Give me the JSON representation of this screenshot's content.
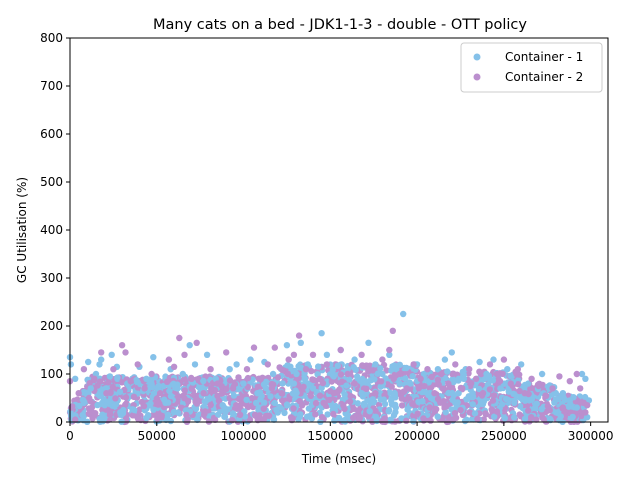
{
  "chart_data": {
    "type": "scatter",
    "title": "Many cats on a bed - JDK1-1-3 - double -  OTT policy",
    "xlabel": "Time (msec)",
    "ylabel": "GC Utilisation (%)",
    "xlim": [
      0,
      310000
    ],
    "ylim": [
      0,
      800
    ],
    "x_ticks": [
      0,
      50000,
      100000,
      150000,
      200000,
      250000,
      300000
    ],
    "y_ticks": [
      0,
      100,
      200,
      300,
      400,
      500,
      600,
      700,
      800
    ],
    "grid": false,
    "legend_position": "top-right",
    "series": [
      {
        "name": "Container - 1",
        "color": "#85c1e9",
        "points": [
          [
            0,
            135
          ],
          [
            500,
            120
          ],
          [
            2000,
            10
          ],
          [
            3000,
            90
          ],
          [
            8000,
            40
          ],
          [
            10500,
            125
          ],
          [
            12000,
            70
          ],
          [
            15000,
            100
          ],
          [
            17000,
            120
          ],
          [
            18000,
            130
          ],
          [
            20000,
            35
          ],
          [
            23000,
            95
          ],
          [
            24000,
            140
          ],
          [
            27000,
            115
          ],
          [
            29000,
            20
          ],
          [
            33000,
            80
          ],
          [
            37000,
            25
          ],
          [
            40000,
            115
          ],
          [
            44000,
            90
          ],
          [
            48000,
            135
          ],
          [
            51000,
            75
          ],
          [
            55000,
            40
          ],
          [
            58000,
            110
          ],
          [
            62000,
            70
          ],
          [
            65000,
            100
          ],
          [
            69000,
            160
          ],
          [
            72000,
            120
          ],
          [
            76000,
            55
          ],
          [
            79000,
            140
          ],
          [
            84000,
            90
          ],
          [
            88000,
            35
          ],
          [
            92000,
            110
          ],
          [
            96000,
            120
          ],
          [
            100000,
            80
          ],
          [
            104000,
            130
          ],
          [
            108000,
            60
          ],
          [
            112000,
            125
          ],
          [
            117000,
            100
          ],
          [
            121000,
            30
          ],
          [
            125000,
            160
          ],
          [
            129000,
            80
          ],
          [
            133000,
            165
          ],
          [
            137000,
            120
          ],
          [
            140000,
            70
          ],
          [
            145000,
            185
          ],
          [
            148000,
            140
          ],
          [
            152000,
            95
          ],
          [
            156000,
            150
          ],
          [
            160000,
            110
          ],
          [
            164000,
            130
          ],
          [
            168000,
            60
          ],
          [
            172000,
            165
          ],
          [
            176000,
            120
          ],
          [
            180000,
            100
          ],
          [
            184000,
            140
          ],
          [
            188000,
            110
          ],
          [
            192000,
            225
          ],
          [
            196000,
            80
          ],
          [
            200000,
            120
          ],
          [
            204000,
            100
          ],
          [
            208000,
            50
          ],
          [
            212000,
            110
          ],
          [
            216000,
            130
          ],
          [
            220000,
            145
          ],
          [
            224000,
            90
          ],
          [
            228000,
            110
          ],
          [
            232000,
            60
          ],
          [
            236000,
            125
          ],
          [
            240000,
            100
          ],
          [
            244000,
            130
          ],
          [
            248000,
            70
          ],
          [
            252000,
            110
          ],
          [
            256000,
            40
          ],
          [
            260000,
            120
          ],
          [
            264000,
            80
          ],
          [
            268000,
            30
          ],
          [
            272000,
            100
          ],
          [
            276000,
            70
          ],
          [
            280000,
            20
          ],
          [
            284000,
            60
          ],
          [
            288000,
            45
          ],
          [
            292000,
            30
          ],
          [
            295000,
            100
          ],
          [
            297000,
            90
          ],
          [
            298000,
            10
          ],
          [
            299000,
            45
          ]
        ]
      },
      {
        "name": "Container - 2",
        "color": "#bb8fce",
        "points": [
          [
            0,
            85
          ],
          [
            1000,
            30
          ],
          [
            3000,
            5
          ],
          [
            5000,
            60
          ],
          [
            8000,
            110
          ],
          [
            11000,
            50
          ],
          [
            14000,
            90
          ],
          [
            18000,
            145
          ],
          [
            21000,
            60
          ],
          [
            25000,
            110
          ],
          [
            30000,
            160
          ],
          [
            32000,
            145
          ],
          [
            35000,
            85
          ],
          [
            39000,
            120
          ],
          [
            43000,
            70
          ],
          [
            47000,
            100
          ],
          [
            52000,
            60
          ],
          [
            57000,
            130
          ],
          [
            60000,
            115
          ],
          [
            63000,
            175
          ],
          [
            66000,
            140
          ],
          [
            70000,
            90
          ],
          [
            73000,
            165
          ],
          [
            77000,
            60
          ],
          [
            81000,
            110
          ],
          [
            85000,
            80
          ],
          [
            90000,
            145
          ],
          [
            94000,
            70
          ],
          [
            98000,
            15
          ],
          [
            102000,
            110
          ],
          [
            106000,
            155
          ],
          [
            110000,
            90
          ],
          [
            114000,
            120
          ],
          [
            118000,
            155
          ],
          [
            122000,
            60
          ],
          [
            126000,
            130
          ],
          [
            129000,
            140
          ],
          [
            132000,
            180
          ],
          [
            136000,
            110
          ],
          [
            140000,
            140
          ],
          [
            144000,
            90
          ],
          [
            148000,
            120
          ],
          [
            152000,
            60
          ],
          [
            156000,
            150
          ],
          [
            160000,
            100
          ],
          [
            164000,
            80
          ],
          [
            168000,
            140
          ],
          [
            172000,
            110
          ],
          [
            176000,
            60
          ],
          [
            180000,
            130
          ],
          [
            184000,
            150
          ],
          [
            186000,
            190
          ],
          [
            190000,
            100
          ],
          [
            194000,
            70
          ],
          [
            198000,
            120
          ],
          [
            202000,
            90
          ],
          [
            206000,
            110
          ],
          [
            210000,
            60
          ],
          [
            214000,
            100
          ],
          [
            218000,
            80
          ],
          [
            222000,
            120
          ],
          [
            226000,
            70
          ],
          [
            230000,
            110
          ],
          [
            234000,
            90
          ],
          [
            238000,
            60
          ],
          [
            242000,
            120
          ],
          [
            246000,
            100
          ],
          [
            250000,
            130
          ],
          [
            254000,
            80
          ],
          [
            258000,
            110
          ],
          [
            262000,
            60
          ],
          [
            266000,
            90
          ],
          [
            270000,
            75
          ],
          [
            274000,
            55
          ],
          [
            278000,
            70
          ],
          [
            282000,
            95
          ],
          [
            284000,
            30
          ],
          [
            288000,
            85
          ],
          [
            292000,
            100
          ],
          [
            294000,
            70
          ],
          [
            296000,
            40
          ],
          [
            297000,
            20
          ],
          [
            298000,
            35
          ]
        ]
      }
    ]
  }
}
